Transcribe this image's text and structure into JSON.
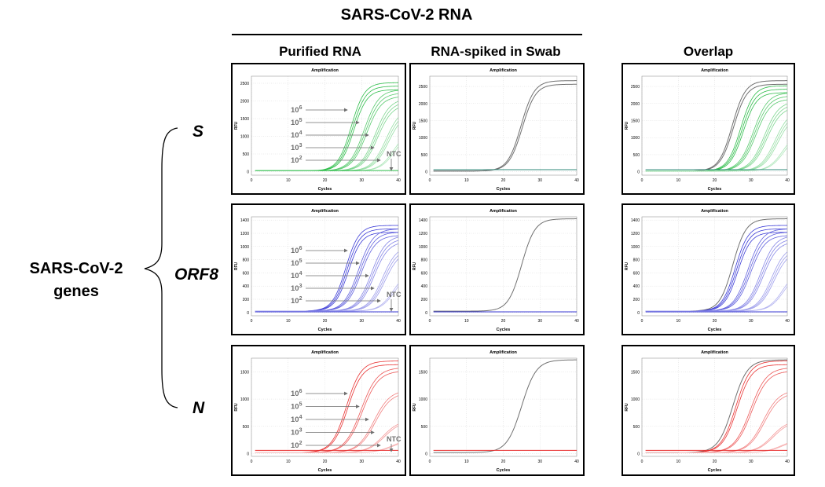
{
  "header": {
    "title": "SARS-CoV-2 RNA",
    "columns": [
      "Purified RNA",
      "RNA-spiked in Swab",
      "Overlap"
    ]
  },
  "left": {
    "group_label_line1": "SARS-CoV-2",
    "group_label_line2": "genes",
    "rows": [
      "S",
      "ORF8",
      "N"
    ]
  },
  "colors": {
    "S": "#2ebd4a",
    "ORF8": "#3a3ad6",
    "N": "#e83030",
    "swab": "#707070",
    "ntc_swab": "#2f8a7a",
    "annotation": "#6f6f6f"
  },
  "annotations": {
    "labels": [
      "10^6",
      "10^5",
      "10^4",
      "10^3",
      "10^2"
    ],
    "ntc": "NTC"
  },
  "chart_data": [
    {
      "id": "S-purified",
      "type": "line",
      "title": "Amplification",
      "xlabel": "Cycles",
      "ylabel": "RFU",
      "xlim": [
        0,
        40
      ],
      "ylim": [
        -100,
        2700
      ],
      "xticks": [
        0,
        10,
        20,
        30,
        40
      ],
      "yticks": [
        0,
        500,
        1000,
        1500,
        2000,
        2500
      ],
      "series": [
        {
          "name": "10^6",
          "ct": 27.5,
          "plateau": 2500,
          "k": 0.55,
          "replicates": 3
        },
        {
          "name": "10^5",
          "ct": 31,
          "plateau": 2300,
          "k": 0.5,
          "replicates": 3
        },
        {
          "name": "10^4",
          "ct": 34,
          "plateau": 2050,
          "k": 0.5,
          "replicates": 3
        },
        {
          "name": "10^3",
          "ct": 37,
          "plateau": 1800,
          "k": 0.5,
          "replicates": 3
        },
        {
          "name": "10^2",
          "ct": 39,
          "plateau": 1200,
          "k": 0.5,
          "replicates": 2
        },
        {
          "name": "NTC",
          "ct": null,
          "baseline": 30
        }
      ]
    },
    {
      "id": "S-swab",
      "type": "line",
      "title": "Amplification",
      "xlabel": "Cycles",
      "ylabel": "RFU",
      "xlim": [
        0,
        40
      ],
      "ylim": [
        -100,
        2800
      ],
      "xticks": [
        0,
        10,
        20,
        30,
        40
      ],
      "yticks": [
        0,
        500,
        1000,
        1500,
        2000,
        2500
      ],
      "series": [
        {
          "name": "swab",
          "ct": 25,
          "plateau": 2650,
          "k": 0.55,
          "replicates": 2
        },
        {
          "name": "NTC",
          "ct": null,
          "baseline": 60
        }
      ]
    },
    {
      "id": "S-overlap",
      "type": "line",
      "title": "Amplification",
      "xlabel": "Cycles",
      "ylabel": "RFU",
      "xlim": [
        0,
        40
      ],
      "ylim": [
        -100,
        2800
      ],
      "xticks": [
        0,
        10,
        20,
        30,
        40
      ],
      "yticks": [
        0,
        500,
        1000,
        1500,
        2000,
        2500
      ],
      "series": [
        {
          "name": "swab",
          "ct": 25,
          "plateau": 2650,
          "k": 0.55,
          "replicates": 2
        },
        {
          "name": "10^6",
          "ct": 27.5,
          "plateau": 2500,
          "k": 0.55,
          "replicates": 3
        },
        {
          "name": "10^5",
          "ct": 31,
          "plateau": 2300,
          "k": 0.5,
          "replicates": 3
        },
        {
          "name": "10^4",
          "ct": 34,
          "plateau": 2050,
          "k": 0.5,
          "replicates": 3
        },
        {
          "name": "10^3",
          "ct": 37,
          "plateau": 1800,
          "k": 0.5,
          "replicates": 3
        },
        {
          "name": "10^2",
          "ct": 39,
          "plateau": 1200,
          "k": 0.5,
          "replicates": 2
        },
        {
          "name": "NTC",
          "ct": null,
          "baseline": 60
        }
      ]
    },
    {
      "id": "ORF8-purified",
      "type": "line",
      "title": "Amplification",
      "xlabel": "Cycles",
      "ylabel": "RFU",
      "xlim": [
        0,
        40
      ],
      "ylim": [
        -50,
        1450
      ],
      "xticks": [
        0,
        10,
        20,
        30,
        40
      ],
      "yticks": [
        0,
        200,
        400,
        600,
        800,
        1000,
        1200,
        1400
      ],
      "series": [
        {
          "name": "10^6",
          "ct": 26,
          "plateau": 1300,
          "k": 0.55,
          "replicates": 3
        },
        {
          "name": "10^5",
          "ct": 29.5,
          "plateau": 1250,
          "k": 0.5,
          "replicates": 3
        },
        {
          "name": "10^4",
          "ct": 33,
          "plateau": 1150,
          "k": 0.5,
          "replicates": 3
        },
        {
          "name": "10^3",
          "ct": 36,
          "plateau": 1000,
          "k": 0.5,
          "replicates": 3
        },
        {
          "name": "10^2",
          "ct": 39,
          "plateau": 650,
          "k": 0.5,
          "replicates": 2
        },
        {
          "name": "NTC",
          "ct": null,
          "baseline": 10
        }
      ]
    },
    {
      "id": "ORF8-swab",
      "type": "line",
      "title": "Amplification",
      "xlabel": "Cycles",
      "ylabel": "RFU",
      "xlim": [
        0,
        40
      ],
      "ylim": [
        -50,
        1450
      ],
      "xticks": [
        0,
        10,
        20,
        30,
        40
      ],
      "yticks": [
        0,
        200,
        400,
        600,
        800,
        1000,
        1200,
        1400
      ],
      "series": [
        {
          "name": "swab",
          "ct": 25,
          "plateau": 1400,
          "k": 0.55,
          "replicates": 1
        },
        {
          "name": "NTC",
          "ct": null,
          "baseline": 10
        }
      ]
    },
    {
      "id": "ORF8-overlap",
      "type": "line",
      "title": "Amplification",
      "xlabel": "Cycles",
      "ylabel": "RFU",
      "xlim": [
        0,
        40
      ],
      "ylim": [
        -50,
        1450
      ],
      "xticks": [
        0,
        10,
        20,
        30,
        40
      ],
      "yticks": [
        0,
        200,
        400,
        600,
        800,
        1000,
        1200,
        1400
      ],
      "series": [
        {
          "name": "swab",
          "ct": 25,
          "plateau": 1400,
          "k": 0.55,
          "replicates": 1
        },
        {
          "name": "10^6",
          "ct": 26,
          "plateau": 1300,
          "k": 0.55,
          "replicates": 3
        },
        {
          "name": "10^5",
          "ct": 29.5,
          "plateau": 1250,
          "k": 0.5,
          "replicates": 3
        },
        {
          "name": "10^4",
          "ct": 33,
          "plateau": 1150,
          "k": 0.5,
          "replicates": 3
        },
        {
          "name": "10^3",
          "ct": 36,
          "plateau": 1000,
          "k": 0.5,
          "replicates": 3
        },
        {
          "name": "10^2",
          "ct": 39,
          "plateau": 650,
          "k": 0.5,
          "replicates": 2
        },
        {
          "name": "NTC",
          "ct": null,
          "baseline": 10
        }
      ]
    },
    {
      "id": "N-purified",
      "type": "line",
      "title": "Amplification",
      "xlabel": "Cycles",
      "ylabel": "RFU",
      "xlim": [
        0,
        40
      ],
      "ylim": [
        -50,
        1750
      ],
      "xticks": [
        0,
        10,
        20,
        30,
        40
      ],
      "yticks": [
        0,
        500,
        1000,
        1500
      ],
      "series": [
        {
          "name": "10^6",
          "ct": 26,
          "plateau": 1680,
          "k": 0.5,
          "replicates": 2
        },
        {
          "name": "10^5",
          "ct": 30,
          "plateau": 1560,
          "k": 0.45,
          "replicates": 2
        },
        {
          "name": "10^4",
          "ct": 33.5,
          "plateau": 1150,
          "k": 0.45,
          "replicates": 2
        },
        {
          "name": "10^3",
          "ct": 36,
          "plateau": 600,
          "k": 0.45,
          "replicates": 2
        },
        {
          "name": "10^2",
          "ct": 38.5,
          "plateau": 250,
          "k": 0.45,
          "replicates": 2
        },
        {
          "name": "NTC",
          "ct": null,
          "baseline": 60
        }
      ]
    },
    {
      "id": "N-swab",
      "type": "line",
      "title": "Amplification",
      "xlabel": "Cycles",
      "ylabel": "RFU",
      "xlim": [
        0,
        40
      ],
      "ylim": [
        -50,
        1750
      ],
      "xticks": [
        0,
        10,
        20,
        30,
        40
      ],
      "yticks": [
        0,
        500,
        1000,
        1500
      ],
      "series": [
        {
          "name": "swab",
          "ct": 25,
          "plateau": 1700,
          "k": 0.5,
          "replicates": 1
        },
        {
          "name": "NTC",
          "ct": null,
          "baseline": 60
        }
      ]
    },
    {
      "id": "N-overlap",
      "type": "line",
      "title": "Amplification",
      "xlabel": "Cycles",
      "ylabel": "RFU",
      "xlim": [
        0,
        40
      ],
      "ylim": [
        -50,
        1750
      ],
      "xticks": [
        0,
        10,
        20,
        30,
        40
      ],
      "yticks": [
        0,
        500,
        1000,
        1500
      ],
      "series": [
        {
          "name": "swab",
          "ct": 25,
          "plateau": 1700,
          "k": 0.5,
          "replicates": 1
        },
        {
          "name": "10^6",
          "ct": 26,
          "plateau": 1680,
          "k": 0.5,
          "replicates": 2
        },
        {
          "name": "10^5",
          "ct": 30,
          "plateau": 1560,
          "k": 0.45,
          "replicates": 2
        },
        {
          "name": "10^4",
          "ct": 33.5,
          "plateau": 1150,
          "k": 0.45,
          "replicates": 2
        },
        {
          "name": "10^3",
          "ct": 36,
          "plateau": 600,
          "k": 0.45,
          "replicates": 2
        },
        {
          "name": "10^2",
          "ct": 38.5,
          "plateau": 250,
          "k": 0.45,
          "replicates": 2
        },
        {
          "name": "NTC",
          "ct": null,
          "baseline": 60
        }
      ]
    }
  ]
}
